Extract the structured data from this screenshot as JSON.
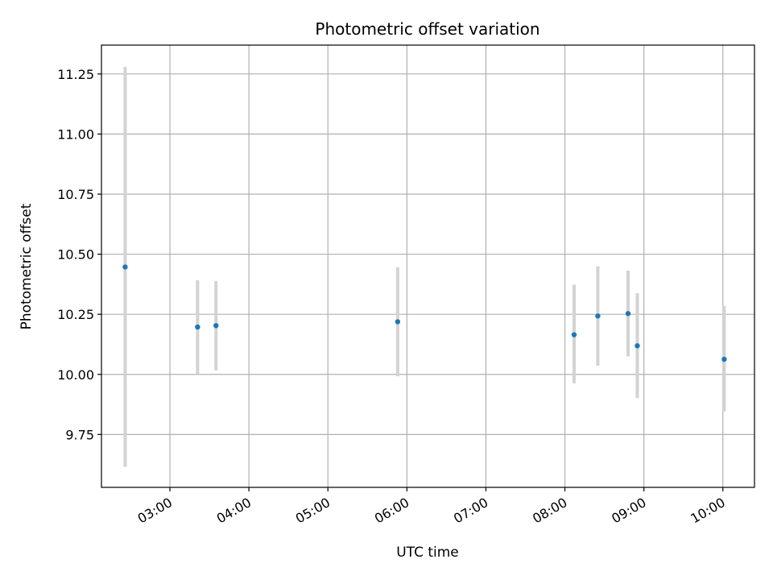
{
  "chart_data": {
    "type": "scatter",
    "title": "Photometric offset variation",
    "xlabel": "UTC time",
    "ylabel": "Photometric offset",
    "x_unit": "UTC hh:mm",
    "xlim": [
      "02:08",
      "10:24"
    ],
    "ylim": [
      9.53,
      11.37
    ],
    "x_ticks": [
      "03:00",
      "04:00",
      "05:00",
      "06:00",
      "07:00",
      "08:00",
      "09:00",
      "10:00"
    ],
    "y_ticks": [
      9.75,
      10.0,
      10.25,
      10.5,
      10.75,
      11.0,
      11.25
    ],
    "y_tick_labels": [
      "9.75",
      "10.00",
      "10.25",
      "10.50",
      "10.75",
      "11.00",
      "11.25"
    ],
    "grid": true,
    "legend": false,
    "colors": {
      "point": "#1f77b4",
      "errorbar": "#d3d3d3",
      "grid": "#b0b0b0",
      "axes": "#000000"
    },
    "series": [
      {
        "points": [
          {
            "x": "02:26",
            "y": 10.447,
            "ylow": 9.615,
            "yhigh": 11.28
          },
          {
            "x": "03:21",
            "y": 10.197,
            "ylow": 10.002,
            "yhigh": 10.392
          },
          {
            "x": "03:35",
            "y": 10.203,
            "ylow": 10.017,
            "yhigh": 10.389
          },
          {
            "x": "05:53",
            "y": 10.219,
            "ylow": 9.992,
            "yhigh": 10.446
          },
          {
            "x": "08:07",
            "y": 10.165,
            "ylow": 9.963,
            "yhigh": 10.373
          },
          {
            "x": "08:25",
            "y": 10.243,
            "ylow": 10.036,
            "yhigh": 10.45
          },
          {
            "x": "08:48",
            "y": 10.253,
            "ylow": 10.075,
            "yhigh": 10.432
          },
          {
            "x": "08:55",
            "y": 10.119,
            "ylow": 9.901,
            "yhigh": 10.338
          },
          {
            "x": "10:01",
            "y": 10.063,
            "ylow": 9.846,
            "yhigh": 10.284
          }
        ]
      }
    ]
  }
}
